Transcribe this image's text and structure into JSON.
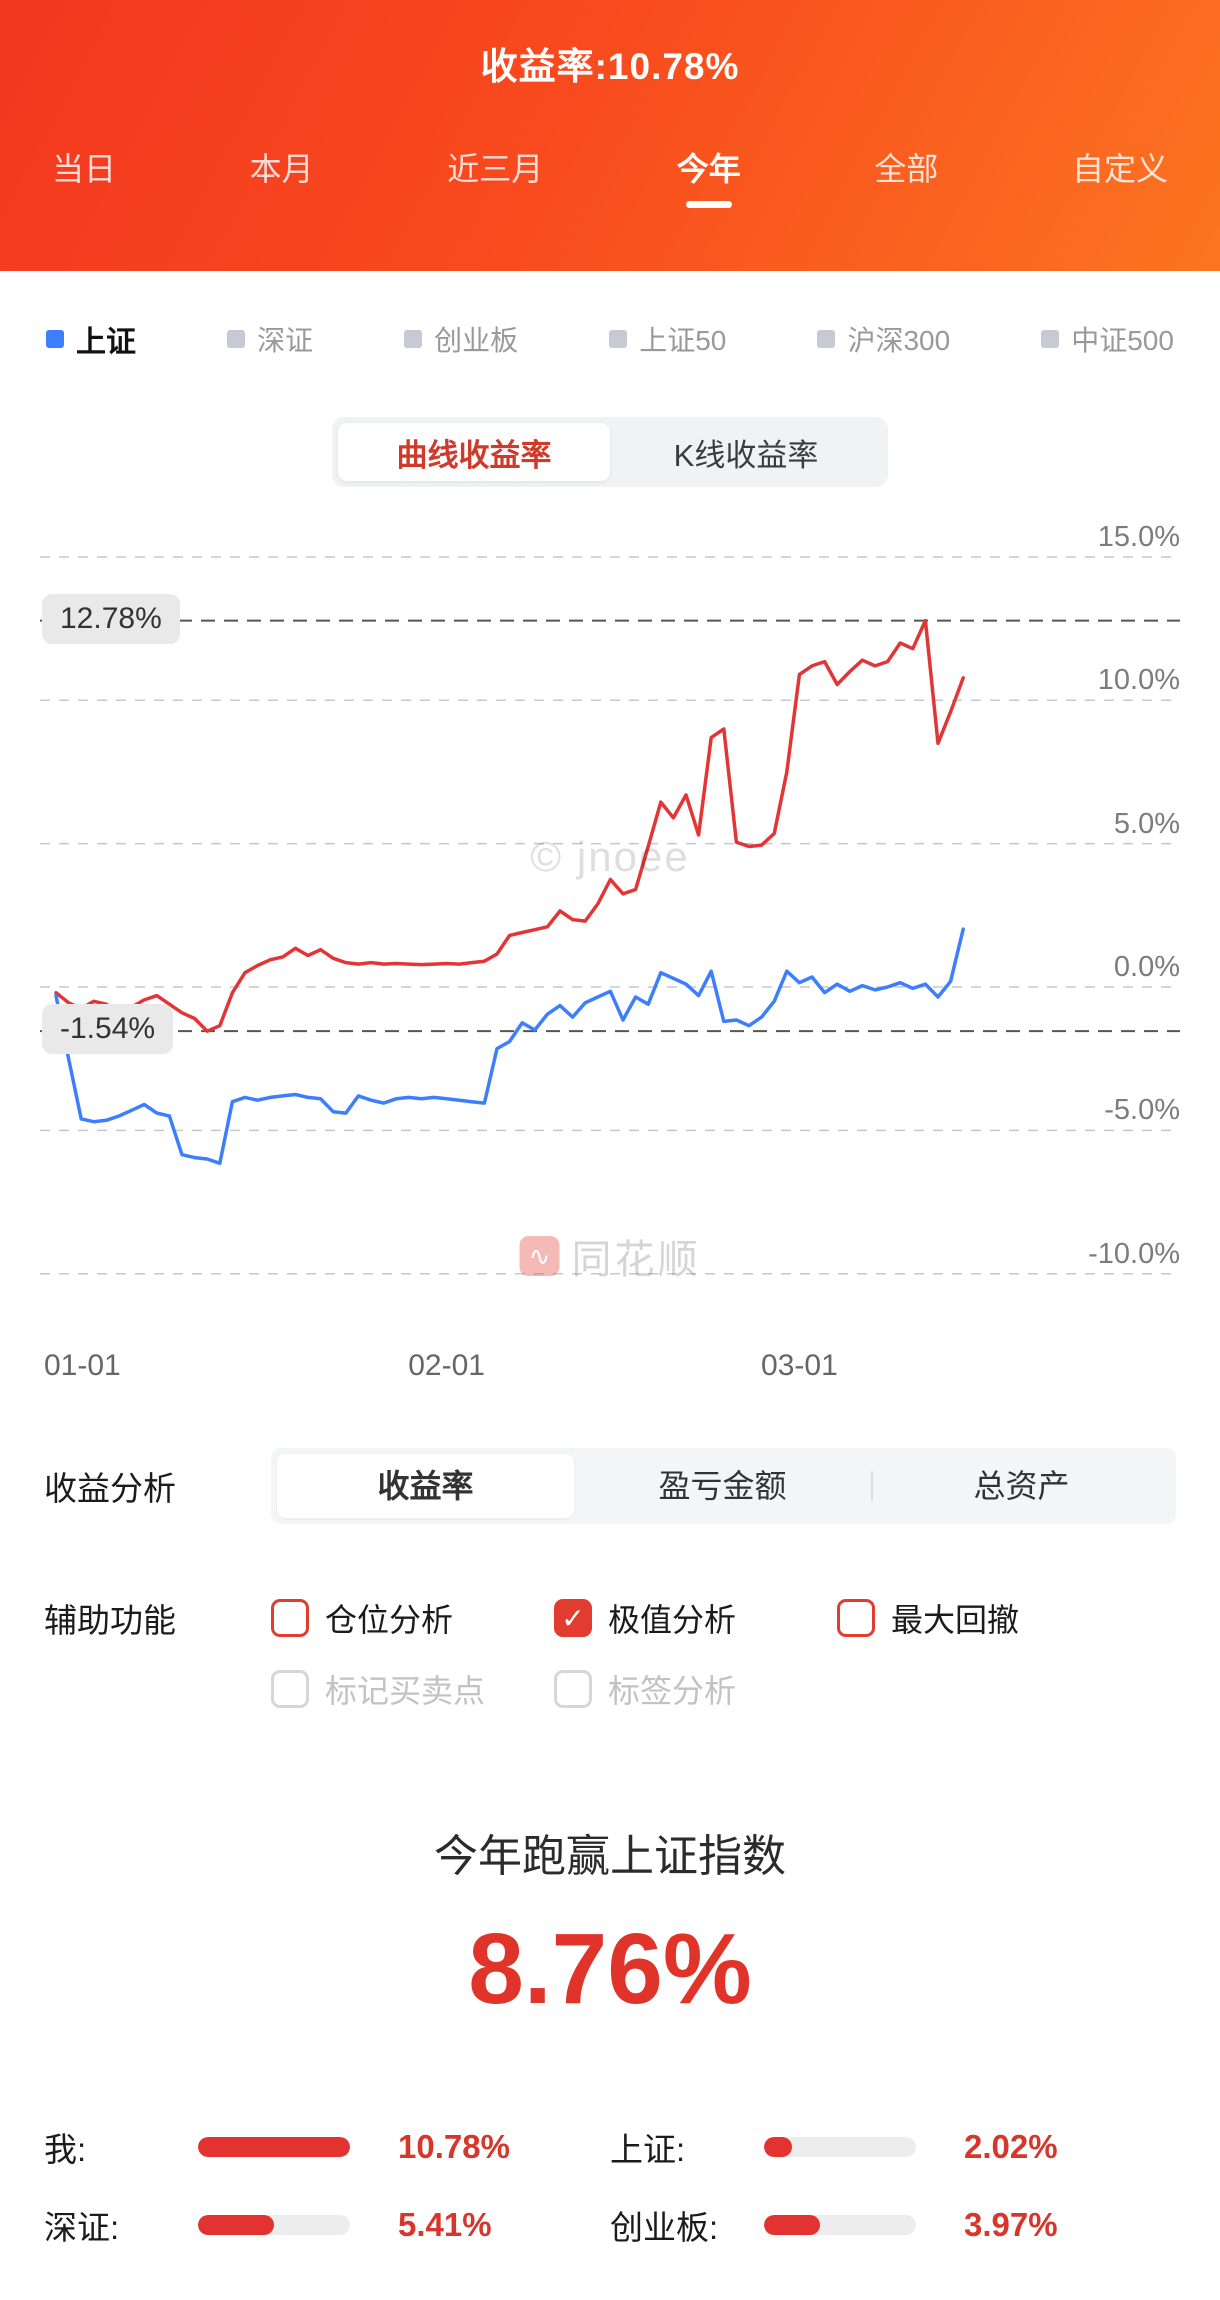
{
  "colors": {
    "header_red": "#f2371f",
    "header_orange": "#fc7420",
    "accent_red": "#e23330",
    "line_blue": "#3D7EFF"
  },
  "header": {
    "title": "收益率:10.78%",
    "tabs": [
      {
        "label": "当日",
        "active": false
      },
      {
        "label": "本月",
        "active": false
      },
      {
        "label": "近三月",
        "active": false
      },
      {
        "label": "今年",
        "active": true
      },
      {
        "label": "全部",
        "active": false
      },
      {
        "label": "自定义",
        "active": false
      }
    ]
  },
  "legend": {
    "items": [
      {
        "label": "上证",
        "color": "#3D7EFF",
        "active": true
      },
      {
        "label": "深证",
        "color": "#c6cad2",
        "active": false
      },
      {
        "label": "创业板",
        "color": "#c6cad2",
        "active": false
      },
      {
        "label": "上证50",
        "color": "#c6cad2",
        "active": false
      },
      {
        "label": "沪深300",
        "color": "#c6cad2",
        "active": false
      },
      {
        "label": "中证500",
        "color": "#c6cad2",
        "active": false
      }
    ]
  },
  "chart_toggle": {
    "options": [
      {
        "label": "曲线收益率",
        "active": true
      },
      {
        "label": "K线收益率",
        "active": false
      }
    ]
  },
  "chart_data": {
    "type": "line",
    "watermark": "© jnoee",
    "brand_watermark": "同花顺",
    "y_axis": {
      "ticks": [
        "15.0%",
        "10.0%",
        "5.0%",
        "0.0%",
        "-5.0%",
        "-10.0%"
      ],
      "values": [
        15,
        10,
        5,
        0,
        -5,
        -10
      ],
      "ylim": [
        -10,
        15
      ]
    },
    "x_axis": {
      "ticks": [
        "01-01",
        "02-01",
        "03-01"
      ],
      "tick_days": [
        0,
        31,
        59
      ],
      "day_span": [
        0,
        72
      ]
    },
    "annotations": {
      "max": {
        "label": "12.78%",
        "value": 12.78
      },
      "min": {
        "label": "-1.54%",
        "value": -1.54
      }
    },
    "series": [
      {
        "name": "我",
        "color": "#e23636",
        "points": [
          [
            0,
            -0.2
          ],
          [
            1,
            -0.55
          ],
          [
            2,
            -0.75
          ],
          [
            3,
            -0.5
          ],
          [
            4,
            -0.6
          ],
          [
            5,
            -0.95
          ],
          [
            6,
            -0.7
          ],
          [
            7,
            -0.45
          ],
          [
            8,
            -0.3
          ],
          [
            9,
            -0.6
          ],
          [
            10,
            -0.9
          ],
          [
            11,
            -1.1
          ],
          [
            12,
            -1.54
          ],
          [
            13,
            -1.35
          ],
          [
            14,
            -0.2
          ],
          [
            15,
            0.5
          ],
          [
            16,
            0.75
          ],
          [
            17,
            0.95
          ],
          [
            18,
            1.05
          ],
          [
            19,
            1.35
          ],
          [
            20,
            1.1
          ],
          [
            21,
            1.3
          ],
          [
            22,
            1.0
          ],
          [
            23,
            0.85
          ],
          [
            24,
            0.8
          ],
          [
            25,
            0.85
          ],
          [
            26,
            0.8
          ],
          [
            27,
            0.82
          ],
          [
            28,
            0.8
          ],
          [
            29,
            0.78
          ],
          [
            30,
            0.8
          ],
          [
            31,
            0.82
          ],
          [
            32,
            0.8
          ],
          [
            33,
            0.85
          ],
          [
            34,
            0.9
          ],
          [
            35,
            1.15
          ],
          [
            36,
            1.8
          ],
          [
            37,
            1.9
          ],
          [
            38,
            2.0
          ],
          [
            39,
            2.1
          ],
          [
            40,
            2.65
          ],
          [
            41,
            2.35
          ],
          [
            42,
            2.3
          ],
          [
            43,
            2.9
          ],
          [
            44,
            3.75
          ],
          [
            45,
            3.25
          ],
          [
            46,
            3.4
          ],
          [
            47,
            4.9
          ],
          [
            48,
            6.45
          ],
          [
            49,
            5.9
          ],
          [
            50,
            6.7
          ],
          [
            51,
            5.3
          ],
          [
            52,
            8.7
          ],
          [
            53,
            9.0
          ],
          [
            54,
            5.05
          ],
          [
            55,
            4.9
          ],
          [
            56,
            4.95
          ],
          [
            57,
            5.35
          ],
          [
            58,
            7.5
          ],
          [
            59,
            10.9
          ],
          [
            60,
            11.2
          ],
          [
            61,
            11.35
          ],
          [
            62,
            10.55
          ],
          [
            63,
            11.0
          ],
          [
            64,
            11.4
          ],
          [
            65,
            11.2
          ],
          [
            66,
            11.35
          ],
          [
            67,
            12.0
          ],
          [
            68,
            11.8
          ],
          [
            69,
            12.78
          ],
          [
            70,
            8.5
          ],
          [
            71,
            9.6
          ],
          [
            72,
            10.78
          ]
        ]
      },
      {
        "name": "上证",
        "color": "#3D7EFF",
        "points": [
          [
            0,
            -0.3
          ],
          [
            1,
            -2.5
          ],
          [
            2,
            -4.6
          ],
          [
            3,
            -4.7
          ],
          [
            4,
            -4.65
          ],
          [
            5,
            -4.5
          ],
          [
            6,
            -4.3
          ],
          [
            7,
            -4.1
          ],
          [
            8,
            -4.4
          ],
          [
            9,
            -4.5
          ],
          [
            10,
            -5.85
          ],
          [
            11,
            -5.95
          ],
          [
            12,
            -6.0
          ],
          [
            13,
            -6.15
          ],
          [
            14,
            -4.0
          ],
          [
            15,
            -3.85
          ],
          [
            16,
            -3.95
          ],
          [
            17,
            -3.85
          ],
          [
            18,
            -3.8
          ],
          [
            19,
            -3.75
          ],
          [
            20,
            -3.85
          ],
          [
            21,
            -3.9
          ],
          [
            22,
            -4.35
          ],
          [
            23,
            -4.4
          ],
          [
            24,
            -3.8
          ],
          [
            25,
            -3.95
          ],
          [
            26,
            -4.05
          ],
          [
            27,
            -3.9
          ],
          [
            28,
            -3.85
          ],
          [
            29,
            -3.9
          ],
          [
            30,
            -3.85
          ],
          [
            31,
            -3.9
          ],
          [
            32,
            -3.95
          ],
          [
            33,
            -4.0
          ],
          [
            34,
            -4.05
          ],
          [
            35,
            -2.15
          ],
          [
            36,
            -1.9
          ],
          [
            37,
            -1.25
          ],
          [
            38,
            -1.5
          ],
          [
            39,
            -0.95
          ],
          [
            40,
            -0.65
          ],
          [
            41,
            -1.05
          ],
          [
            42,
            -0.55
          ],
          [
            43,
            -0.35
          ],
          [
            44,
            -0.15
          ],
          [
            45,
            -1.15
          ],
          [
            46,
            -0.35
          ],
          [
            47,
            -0.6
          ],
          [
            48,
            0.5
          ],
          [
            49,
            0.3
          ],
          [
            50,
            0.1
          ],
          [
            51,
            -0.3
          ],
          [
            52,
            0.55
          ],
          [
            53,
            -1.2
          ],
          [
            54,
            -1.15
          ],
          [
            55,
            -1.35
          ],
          [
            56,
            -1.05
          ],
          [
            57,
            -0.5
          ],
          [
            58,
            0.55
          ],
          [
            59,
            0.15
          ],
          [
            60,
            0.35
          ],
          [
            61,
            -0.2
          ],
          [
            62,
            0.1
          ],
          [
            63,
            -0.15
          ],
          [
            64,
            0.05
          ],
          [
            65,
            -0.1
          ],
          [
            66,
            0.0
          ],
          [
            67,
            0.15
          ],
          [
            68,
            -0.05
          ],
          [
            69,
            0.1
          ],
          [
            70,
            -0.35
          ],
          [
            71,
            0.2
          ],
          [
            72,
            2.02
          ]
        ]
      }
    ]
  },
  "analysis": {
    "label": "收益分析",
    "tabs": [
      {
        "label": "收益率",
        "active": true
      },
      {
        "label": "盈亏金额",
        "active": false
      },
      {
        "label": "总资产",
        "active": false
      }
    ]
  },
  "aux": {
    "label": "辅助功能",
    "rows": [
      [
        {
          "label": "仓位分析",
          "checked": false,
          "style": "red"
        },
        {
          "label": "极值分析",
          "checked": true,
          "style": "red"
        },
        {
          "label": "最大回撤",
          "checked": false,
          "style": "red"
        }
      ],
      [
        {
          "label": "标记买卖点",
          "checked": false,
          "style": "gray"
        },
        {
          "label": "标签分析",
          "checked": false,
          "style": "gray"
        }
      ]
    ]
  },
  "summary": {
    "caption": "今年跑赢上证指数",
    "value": "8.76%"
  },
  "stats": {
    "max_value": 10.78,
    "items": [
      {
        "label": "我:",
        "value": "10.78%",
        "pct": 10.78
      },
      {
        "label": "上证:",
        "value": "2.02%",
        "pct": 2.02
      },
      {
        "label": "深证:",
        "value": "5.41%",
        "pct": 5.41
      },
      {
        "label": "创业板:",
        "value": "3.97%",
        "pct": 3.97
      }
    ]
  }
}
